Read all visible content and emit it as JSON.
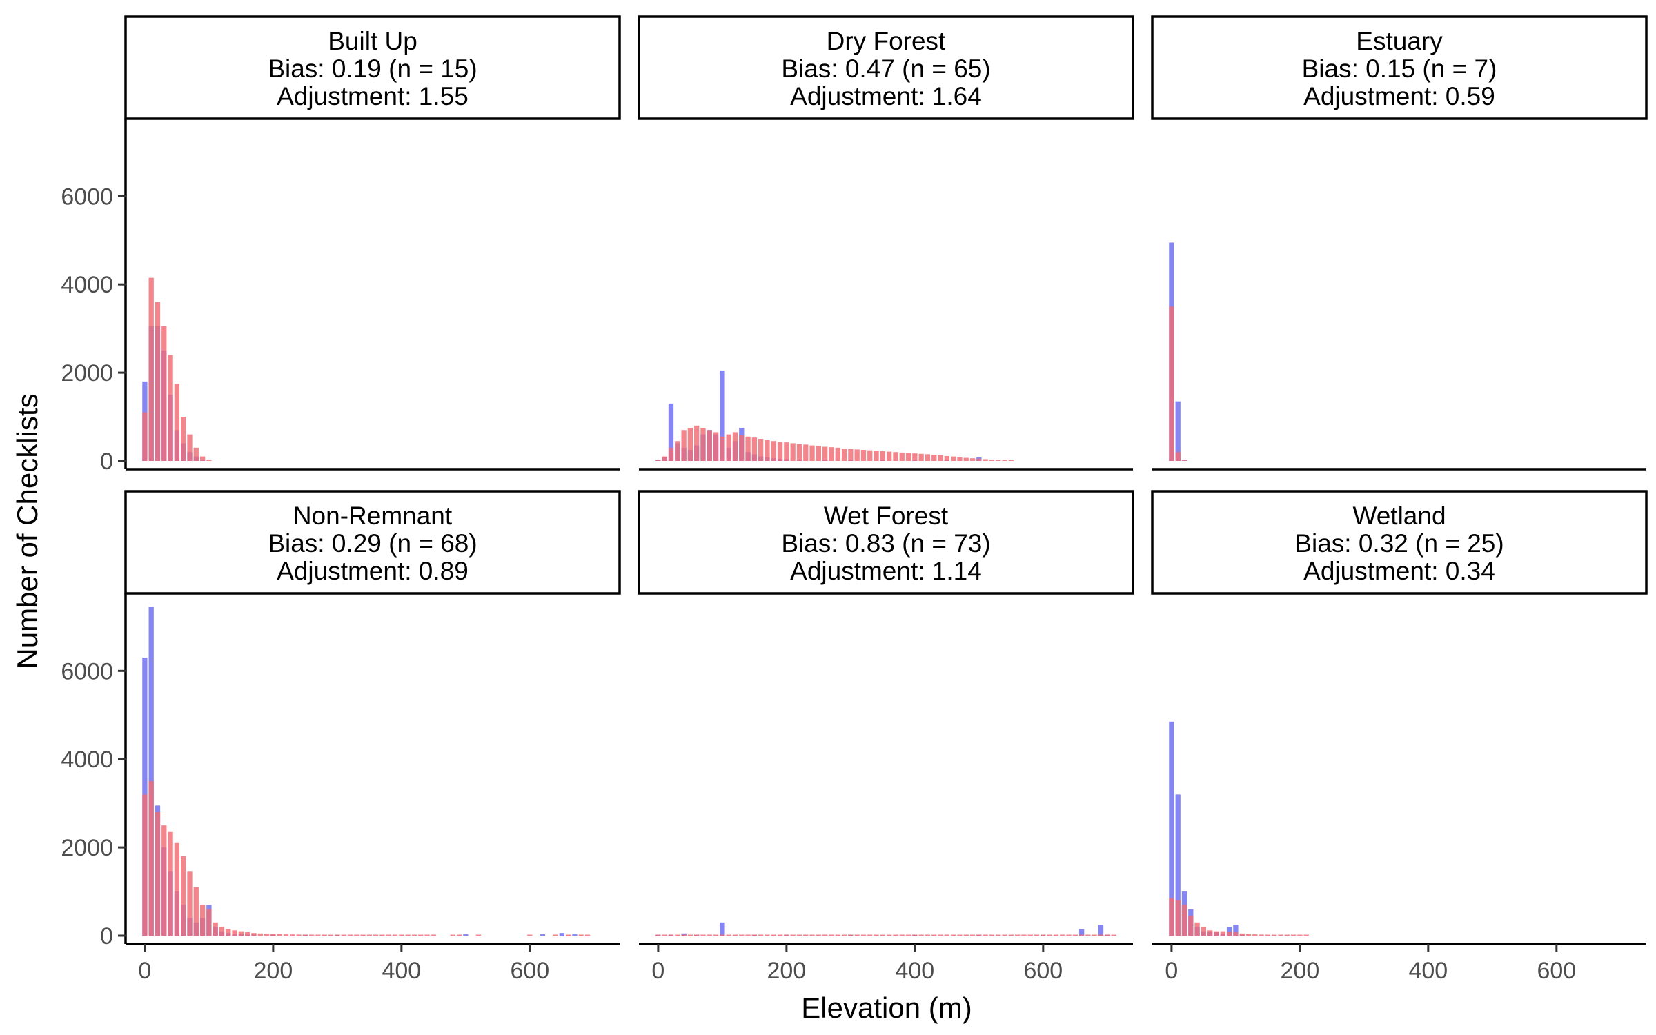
{
  "chart_data": {
    "type": "bar",
    "layout": "facet-grid-2x3",
    "xlabel": "Elevation (m)",
    "ylabel": "Number of Checklists",
    "xlim": [
      -30,
      740
    ],
    "ylim": [
      0,
      7600
    ],
    "x_ticks": [
      0,
      200,
      400,
      600
    ],
    "y_ticks": [
      0,
      2000,
      4000,
      6000
    ],
    "bin_width": 10,
    "grid": false,
    "legend": "none",
    "series_colors": {
      "series_1": "#6b6bf0",
      "series_2": "#f06b73"
    },
    "overlap_color": "#b0285a",
    "panels": [
      {
        "title": "Built Up",
        "bias_text": "Bias: 0.19 (n = 15)",
        "adjustment_text": "Adjustment: 1.55",
        "series_1": [
          [
            0,
            1800
          ],
          [
            10,
            3050
          ],
          [
            20,
            3050
          ],
          [
            30,
            2500
          ],
          [
            40,
            1500
          ],
          [
            50,
            700
          ],
          [
            60,
            400
          ],
          [
            70,
            200
          ],
          [
            80,
            100
          ],
          [
            90,
            30
          ]
        ],
        "series_2": [
          [
            0,
            1100
          ],
          [
            10,
            4150
          ],
          [
            20,
            3600
          ],
          [
            30,
            3050
          ],
          [
            40,
            2400
          ],
          [
            50,
            1750
          ],
          [
            60,
            1000
          ],
          [
            70,
            600
          ],
          [
            80,
            300
          ],
          [
            90,
            100
          ],
          [
            100,
            30
          ]
        ]
      },
      {
        "title": "Dry Forest",
        "bias_text": "Bias: 0.47 (n = 65)",
        "adjustment_text": "Adjustment: 1.64",
        "series_1": [
          [
            0,
            20
          ],
          [
            10,
            80
          ],
          [
            20,
            1300
          ],
          [
            30,
            400
          ],
          [
            40,
            300
          ],
          [
            50,
            250
          ],
          [
            60,
            350
          ],
          [
            70,
            600
          ],
          [
            80,
            700
          ],
          [
            90,
            600
          ],
          [
            100,
            2050
          ],
          [
            110,
            300
          ],
          [
            120,
            450
          ],
          [
            130,
            750
          ],
          [
            140,
            200
          ],
          [
            150,
            150
          ],
          [
            160,
            100
          ],
          [
            170,
            80
          ],
          [
            180,
            60
          ],
          [
            190,
            50
          ],
          [
            200,
            40
          ],
          [
            220,
            30
          ],
          [
            260,
            20
          ],
          [
            300,
            20
          ],
          [
            350,
            15
          ],
          [
            400,
            10
          ],
          [
            450,
            10
          ],
          [
            500,
            80
          ]
        ],
        "series_2": [
          [
            0,
            20
          ],
          [
            10,
            100
          ],
          [
            20,
            300
          ],
          [
            30,
            450
          ],
          [
            40,
            700
          ],
          [
            50,
            750
          ],
          [
            60,
            800
          ],
          [
            70,
            750
          ],
          [
            80,
            700
          ],
          [
            90,
            650
          ],
          [
            100,
            550
          ],
          [
            110,
            600
          ],
          [
            120,
            650
          ],
          [
            130,
            580
          ],
          [
            140,
            550
          ],
          [
            150,
            530
          ],
          [
            160,
            500
          ],
          [
            170,
            470
          ],
          [
            180,
            450
          ],
          [
            190,
            430
          ],
          [
            200,
            420
          ],
          [
            210,
            400
          ],
          [
            220,
            380
          ],
          [
            230,
            370
          ],
          [
            240,
            350
          ],
          [
            250,
            340
          ],
          [
            260,
            320
          ],
          [
            270,
            310
          ],
          [
            280,
            300
          ],
          [
            290,
            280
          ],
          [
            300,
            270
          ],
          [
            310,
            260
          ],
          [
            320,
            250
          ],
          [
            330,
            240
          ],
          [
            340,
            230
          ],
          [
            350,
            220
          ],
          [
            360,
            210
          ],
          [
            370,
            200
          ],
          [
            380,
            190
          ],
          [
            390,
            180
          ],
          [
            400,
            170
          ],
          [
            410,
            160
          ],
          [
            420,
            150
          ],
          [
            430,
            140
          ],
          [
            440,
            130
          ],
          [
            450,
            110
          ],
          [
            460,
            100
          ],
          [
            470,
            80
          ],
          [
            480,
            70
          ],
          [
            490,
            60
          ],
          [
            500,
            50
          ],
          [
            510,
            40
          ],
          [
            520,
            30
          ],
          [
            530,
            20
          ],
          [
            540,
            10
          ],
          [
            550,
            5
          ]
        ]
      },
      {
        "title": "Estuary",
        "bias_text": "Bias: 0.15 (n = 7)",
        "adjustment_text": "Adjustment: 0.59",
        "series_1": [
          [
            0,
            4950
          ],
          [
            10,
            1350
          ],
          [
            20,
            30
          ]
        ],
        "series_2": [
          [
            0,
            3500
          ],
          [
            10,
            200
          ],
          [
            20,
            10
          ]
        ]
      },
      {
        "title": "Non-Remnant",
        "bias_text": "Bias: 0.29 (n = 68)",
        "adjustment_text": "Adjustment: 0.89",
        "series_1": [
          [
            0,
            6300
          ],
          [
            10,
            7450
          ],
          [
            20,
            2950
          ],
          [
            30,
            2000
          ],
          [
            40,
            1450
          ],
          [
            50,
            1000
          ],
          [
            60,
            700
          ],
          [
            70,
            400
          ],
          [
            80,
            300
          ],
          [
            90,
            400
          ],
          [
            100,
            700
          ],
          [
            110,
            200
          ],
          [
            120,
            100
          ],
          [
            130,
            60
          ],
          [
            140,
            40
          ],
          [
            150,
            30
          ],
          [
            160,
            20
          ],
          [
            170,
            20
          ],
          [
            200,
            15
          ],
          [
            250,
            10
          ],
          [
            300,
            10
          ],
          [
            500,
            30
          ],
          [
            620,
            30
          ],
          [
            650,
            60
          ],
          [
            670,
            30
          ]
        ],
        "series_2": [
          [
            0,
            3200
          ],
          [
            10,
            3500
          ],
          [
            20,
            2800
          ],
          [
            30,
            2500
          ],
          [
            40,
            2350
          ],
          [
            50,
            2100
          ],
          [
            60,
            1800
          ],
          [
            70,
            1450
          ],
          [
            80,
            1100
          ],
          [
            90,
            700
          ],
          [
            100,
            600
          ],
          [
            110,
            300
          ],
          [
            120,
            200
          ],
          [
            130,
            150
          ],
          [
            140,
            120
          ],
          [
            150,
            100
          ],
          [
            160,
            80
          ],
          [
            170,
            60
          ],
          [
            180,
            50
          ],
          [
            190,
            45
          ],
          [
            200,
            40
          ],
          [
            210,
            35
          ],
          [
            220,
            30
          ],
          [
            230,
            28
          ],
          [
            240,
            25
          ],
          [
            250,
            22
          ],
          [
            260,
            20
          ],
          [
            270,
            18
          ],
          [
            280,
            16
          ],
          [
            290,
            15
          ],
          [
            300,
            14
          ],
          [
            310,
            13
          ],
          [
            320,
            12
          ],
          [
            330,
            11
          ],
          [
            340,
            10
          ],
          [
            350,
            10
          ],
          [
            360,
            10
          ],
          [
            370,
            10
          ],
          [
            380,
            10
          ],
          [
            390,
            10
          ],
          [
            400,
            10
          ],
          [
            410,
            10
          ],
          [
            420,
            10
          ],
          [
            430,
            10
          ],
          [
            440,
            10
          ],
          [
            450,
            10
          ],
          [
            480,
            10
          ],
          [
            490,
            10
          ],
          [
            520,
            10
          ],
          [
            600,
            10
          ],
          [
            640,
            10
          ],
          [
            660,
            10
          ],
          [
            680,
            10
          ],
          [
            690,
            10
          ]
        ]
      },
      {
        "title": "Wet Forest",
        "bias_text": "Bias: 0.83 (n = 73)",
        "adjustment_text": "Adjustment: 1.14",
        "series_1": [
          [
            0,
            10
          ],
          [
            20,
            20
          ],
          [
            40,
            50
          ],
          [
            60,
            20
          ],
          [
            100,
            300
          ],
          [
            150,
            20
          ],
          [
            200,
            15
          ],
          [
            300,
            15
          ],
          [
            400,
            15
          ],
          [
            500,
            15
          ],
          [
            600,
            15
          ],
          [
            660,
            150
          ],
          [
            690,
            250
          ],
          [
            700,
            10
          ]
        ],
        "series_2": [
          [
            0,
            20
          ],
          [
            10,
            20
          ],
          [
            20,
            20
          ],
          [
            30,
            20
          ],
          [
            40,
            20
          ],
          [
            50,
            20
          ],
          [
            60,
            20
          ],
          [
            70,
            20
          ],
          [
            80,
            20
          ],
          [
            90,
            20
          ],
          [
            100,
            20
          ],
          [
            110,
            20
          ],
          [
            120,
            20
          ],
          [
            130,
            20
          ],
          [
            140,
            20
          ],
          [
            150,
            20
          ],
          [
            160,
            20
          ],
          [
            170,
            20
          ],
          [
            180,
            20
          ],
          [
            190,
            20
          ],
          [
            200,
            20
          ],
          [
            210,
            20
          ],
          [
            220,
            20
          ],
          [
            230,
            20
          ],
          [
            240,
            20
          ],
          [
            250,
            20
          ],
          [
            260,
            20
          ],
          [
            270,
            20
          ],
          [
            280,
            20
          ],
          [
            290,
            20
          ],
          [
            300,
            20
          ],
          [
            310,
            20
          ],
          [
            320,
            20
          ],
          [
            330,
            20
          ],
          [
            340,
            20
          ],
          [
            350,
            20
          ],
          [
            360,
            20
          ],
          [
            370,
            20
          ],
          [
            380,
            20
          ],
          [
            390,
            20
          ],
          [
            400,
            20
          ],
          [
            410,
            20
          ],
          [
            420,
            20
          ],
          [
            430,
            20
          ],
          [
            440,
            20
          ],
          [
            450,
            20
          ],
          [
            460,
            20
          ],
          [
            470,
            20
          ],
          [
            480,
            20
          ],
          [
            490,
            20
          ],
          [
            500,
            20
          ],
          [
            510,
            20
          ],
          [
            520,
            20
          ],
          [
            530,
            20
          ],
          [
            540,
            20
          ],
          [
            550,
            20
          ],
          [
            560,
            20
          ],
          [
            570,
            20
          ],
          [
            580,
            20
          ],
          [
            590,
            20
          ],
          [
            600,
            20
          ],
          [
            610,
            20
          ],
          [
            620,
            20
          ],
          [
            630,
            20
          ],
          [
            640,
            20
          ],
          [
            650,
            20
          ],
          [
            660,
            20
          ],
          [
            670,
            20
          ],
          [
            680,
            20
          ],
          [
            690,
            20
          ],
          [
            700,
            20
          ],
          [
            710,
            10
          ]
        ]
      },
      {
        "title": "Wetland",
        "bias_text": "Bias: 0.32 (n = 25)",
        "adjustment_text": "Adjustment: 0.34",
        "series_1": [
          [
            0,
            4850
          ],
          [
            10,
            3200
          ],
          [
            20,
            1000
          ],
          [
            30,
            600
          ],
          [
            40,
            200
          ],
          [
            50,
            100
          ],
          [
            60,
            80
          ],
          [
            70,
            80
          ],
          [
            80,
            50
          ],
          [
            90,
            200
          ],
          [
            100,
            250
          ],
          [
            110,
            20
          ]
        ],
        "series_2": [
          [
            0,
            850
          ],
          [
            10,
            800
          ],
          [
            20,
            700
          ],
          [
            30,
            450
          ],
          [
            40,
            300
          ],
          [
            50,
            200
          ],
          [
            60,
            120
          ],
          [
            70,
            100
          ],
          [
            80,
            100
          ],
          [
            90,
            80
          ],
          [
            100,
            80
          ],
          [
            110,
            50
          ],
          [
            120,
            40
          ],
          [
            130,
            30
          ],
          [
            140,
            25
          ],
          [
            150,
            20
          ],
          [
            160,
            20
          ],
          [
            170,
            15
          ],
          [
            180,
            15
          ],
          [
            190,
            12
          ],
          [
            200,
            10
          ],
          [
            210,
            10
          ]
        ]
      }
    ]
  }
}
